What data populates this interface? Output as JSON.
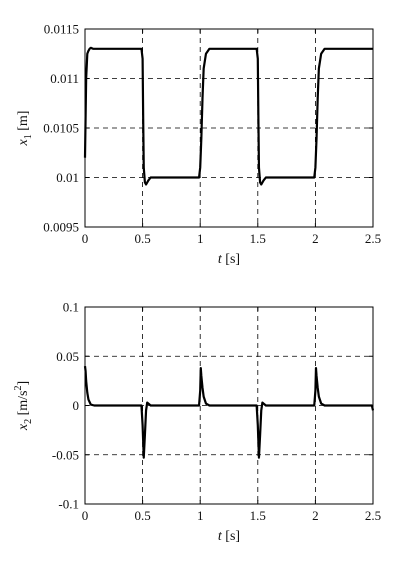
{
  "chart_data": [
    {
      "type": "line",
      "xlabel_var": "t",
      "xlabel_unit": "[s]",
      "ylabel_var": "x",
      "ylabel_sub": "1",
      "ylabel_unit": "[m]",
      "xlim": [
        0,
        2.5
      ],
      "ylim": [
        0.0095,
        0.0115
      ],
      "xticks": [
        0,
        0.5,
        1,
        1.5,
        2,
        2.5
      ],
      "xtick_labels": [
        "0",
        "0.5",
        "1",
        "1.5",
        "2",
        "2.5"
      ],
      "yticks": [
        0.0095,
        0.01,
        0.0105,
        0.011,
        0.0115
      ],
      "ytick_labels": [
        "0.0095",
        "0.01",
        "0.0105",
        "0.011",
        "0.0115"
      ],
      "grid": true,
      "series": [
        {
          "x": [
            0,
            0.005,
            0.01,
            0.02,
            0.03,
            0.04,
            0.05,
            0.07,
            0.1,
            0.15,
            0.3,
            0.49,
            0.5,
            0.505,
            0.51,
            0.52,
            0.53,
            0.55,
            0.57,
            0.6,
            0.7,
            0.99,
            1.0,
            1.01,
            1.02,
            1.03,
            1.05,
            1.08,
            1.1,
            1.15,
            1.3,
            1.49,
            1.5,
            1.505,
            1.51,
            1.52,
            1.53,
            1.55,
            1.57,
            1.6,
            1.8,
            1.99,
            2.0,
            2.01,
            2.02,
            2.03,
            2.05,
            2.08,
            2.1,
            2.15,
            2.3,
            2.5
          ],
          "values": [
            0.0102,
            0.0106,
            0.011,
            0.01125,
            0.01128,
            0.0113,
            0.01131,
            0.0113,
            0.0113,
            0.0113,
            0.0113,
            0.0113,
            0.0112,
            0.0106,
            0.0101,
            0.00995,
            0.00993,
            0.00997,
            0.01,
            0.01,
            0.01,
            0.01,
            0.0101,
            0.0104,
            0.0108,
            0.0111,
            0.01125,
            0.0113,
            0.0113,
            0.0113,
            0.0113,
            0.0113,
            0.0112,
            0.0106,
            0.0101,
            0.00995,
            0.00993,
            0.00997,
            0.01,
            0.01,
            0.01,
            0.01,
            0.0101,
            0.0104,
            0.0108,
            0.0111,
            0.01125,
            0.0113,
            0.0113,
            0.0113,
            0.0113,
            0.0113
          ]
        }
      ]
    },
    {
      "type": "line",
      "xlabel_var": "t",
      "xlabel_unit": "[s]",
      "ylabel_var": "x",
      "ylabel_sub": "2",
      "ylabel_unit": "[m/s",
      "ylabel_sup": "2",
      "ylabel_close": "]",
      "xlim": [
        0,
        2.5
      ],
      "ylim": [
        -0.1,
        0.1
      ],
      "xticks": [
        0,
        0.5,
        1,
        1.5,
        2,
        2.5
      ],
      "xtick_labels": [
        "0",
        "0.5",
        "1",
        "1.5",
        "2",
        "2.5"
      ],
      "yticks": [
        -0.1,
        -0.05,
        0,
        0.05,
        0.1
      ],
      "ytick_labels": [
        "-0.1",
        "-0.05",
        "0",
        "0.05",
        "0.1"
      ],
      "grid": true,
      "series": [
        {
          "x": [
            0,
            0.005,
            0.01,
            0.02,
            0.03,
            0.05,
            0.08,
            0.1,
            0.49,
            0.5,
            0.51,
            0.52,
            0.53,
            0.54,
            0.55,
            0.57,
            0.6,
            0.99,
            1.0,
            1.005,
            1.01,
            1.02,
            1.03,
            1.05,
            1.08,
            1.1,
            1.49,
            1.5,
            1.51,
            1.52,
            1.53,
            1.54,
            1.55,
            1.57,
            1.6,
            1.99,
            2.0,
            2.005,
            2.01,
            2.02,
            2.03,
            2.05,
            2.08,
            2.1,
            2.49,
            2.5
          ],
          "values": [
            0.04,
            0.035,
            0.025,
            0.013,
            0.006,
            0.001,
            0,
            0,
            0,
            -0.02,
            -0.053,
            -0.03,
            -0.005,
            0.003,
            0.002,
            0,
            0,
            0,
            0.015,
            0.038,
            0.03,
            0.018,
            0.009,
            0.002,
            0,
            0,
            0,
            -0.02,
            -0.053,
            -0.03,
            -0.005,
            0.003,
            0.002,
            0,
            0,
            0,
            0.015,
            0.038,
            0.03,
            0.018,
            0.009,
            0.002,
            0,
            0,
            0,
            -0.005
          ]
        }
      ]
    }
  ]
}
